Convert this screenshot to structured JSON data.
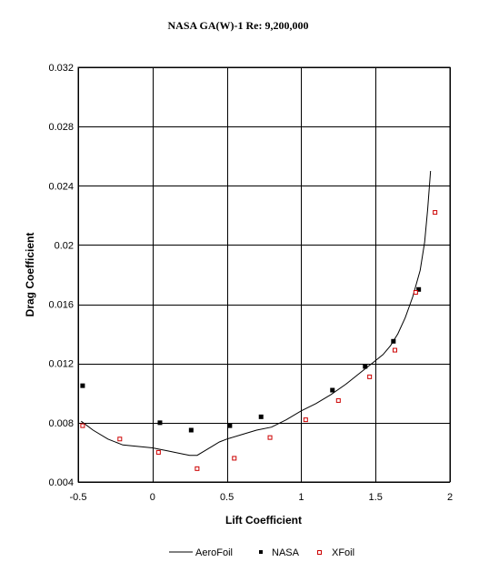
{
  "chart_data": {
    "type": "scatter",
    "title": "NASA GA(W)-1 Re: 9,200,000",
    "xlabel": "Lift Coefficient",
    "ylabel": "Drag Coefficient",
    "xlim": [
      -0.5,
      2
    ],
    "ylim": [
      0.004,
      0.032
    ],
    "x_ticks": [
      -0.5,
      0,
      0.5,
      1,
      1.5,
      2
    ],
    "x_tick_labels": [
      "-0.5",
      "0",
      "0.5",
      "1",
      "1.5",
      "2"
    ],
    "y_ticks": [
      0.004,
      0.008,
      0.012,
      0.016,
      0.02,
      0.024,
      0.028,
      0.032
    ],
    "y_tick_labels": [
      "0.004",
      "0.008",
      "0.012",
      "0.016",
      "0.02",
      "0.024",
      "0.028",
      "0.032"
    ],
    "grid": true,
    "legend_position": "bottom",
    "series": [
      {
        "name": "AeroFoil",
        "style": "line",
        "color": "#000000",
        "x": [
          -0.48,
          -0.4,
          -0.3,
          -0.2,
          -0.1,
          0.0,
          0.1,
          0.2,
          0.25,
          0.3,
          0.35,
          0.4,
          0.45,
          0.5,
          0.6,
          0.7,
          0.8,
          0.9,
          1.0,
          1.1,
          1.2,
          1.3,
          1.4,
          1.5,
          1.55,
          1.6,
          1.65,
          1.7,
          1.75,
          1.8,
          1.83,
          1.85,
          1.87
        ],
        "y": [
          0.0081,
          0.0075,
          0.0069,
          0.0065,
          0.0064,
          0.0063,
          0.0061,
          0.0059,
          0.0058,
          0.0058,
          0.0061,
          0.0064,
          0.0067,
          0.0069,
          0.0072,
          0.0075,
          0.0077,
          0.0082,
          0.0088,
          0.0093,
          0.0099,
          0.0106,
          0.0114,
          0.0122,
          0.0126,
          0.0132,
          0.014,
          0.0151,
          0.0165,
          0.0183,
          0.0202,
          0.0224,
          0.025
        ]
      },
      {
        "name": "NASA",
        "style": "filled-square",
        "color": "#000000",
        "x": [
          -0.47,
          0.05,
          0.26,
          0.52,
          0.73,
          1.21,
          1.43,
          1.62,
          1.79
        ],
        "y": [
          0.0105,
          0.008,
          0.0075,
          0.0078,
          0.0084,
          0.0102,
          0.0118,
          0.0135,
          0.017
        ]
      },
      {
        "name": "XFoil",
        "style": "open-square",
        "color": "#cc0000",
        "x": [
          -0.47,
          -0.22,
          0.04,
          0.3,
          0.55,
          0.79,
          1.03,
          1.25,
          1.46,
          1.63,
          1.77,
          1.9
        ],
        "y": [
          0.0078,
          0.0069,
          0.006,
          0.0049,
          0.0056,
          0.007,
          0.0082,
          0.0095,
          0.0111,
          0.0129,
          0.0168,
          0.0222
        ]
      }
    ]
  }
}
